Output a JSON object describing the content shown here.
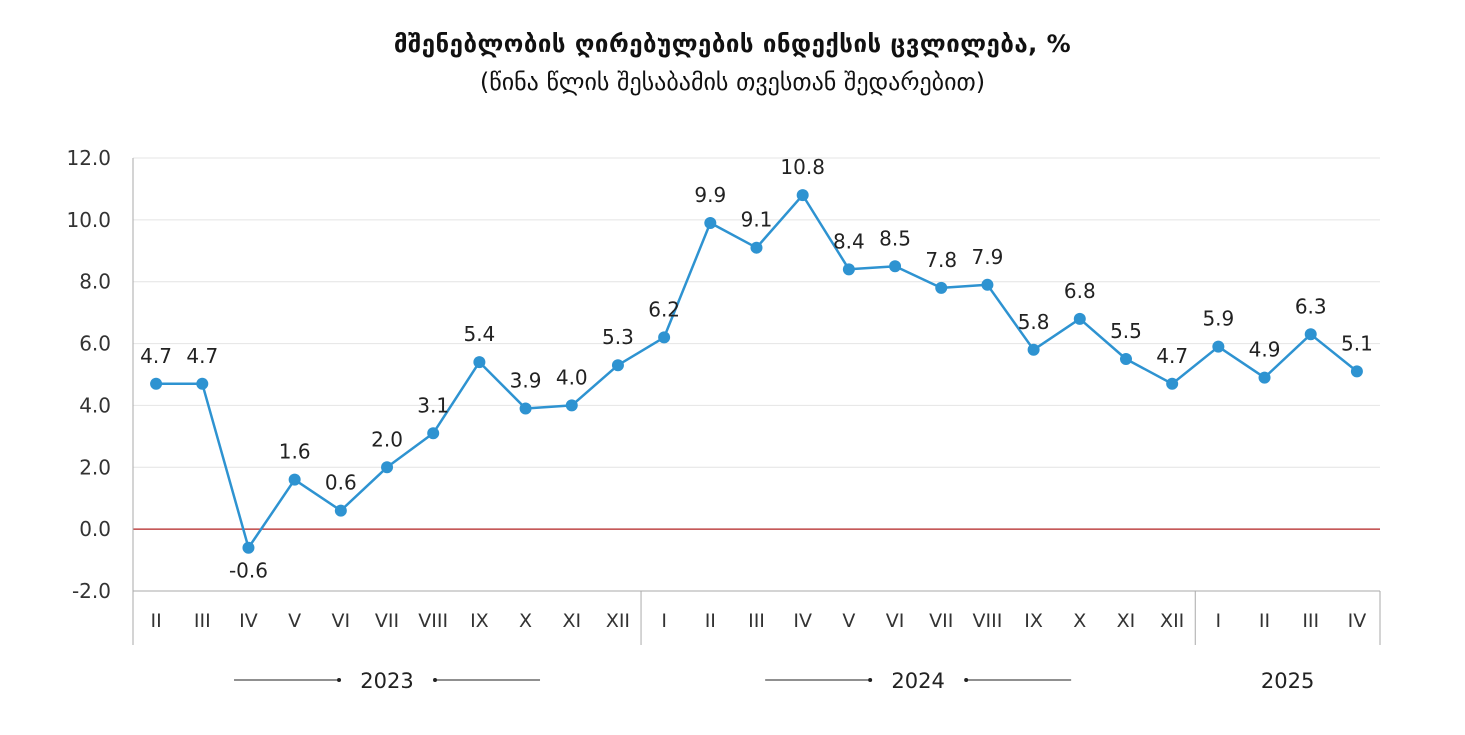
{
  "chart_data": {
    "type": "line",
    "title": "მშენებლობის ღირებულების ინდექსის ცვლილება, %",
    "subtitle": "(წინა წლის შესაბამის თვესთან შედარებით)",
    "xlabel": "",
    "ylabel": "",
    "ylim": [
      -2.0,
      12.0
    ],
    "yticks": [
      "12.0",
      "10.0",
      "8.0",
      "6.0",
      "4.0",
      "2.0",
      "0.0",
      "-2.0"
    ],
    "ytick_values": [
      12,
      10,
      8,
      6,
      4,
      2,
      0,
      -2
    ],
    "grid": true,
    "legend": "none",
    "categories": [
      "II",
      "III",
      "IV",
      "V",
      "VI",
      "VII",
      "VIII",
      "IX",
      "X",
      "XI",
      "XII",
      "I",
      "II",
      "III",
      "IV",
      "V",
      "VI",
      "VII",
      "VIII",
      "IX",
      "X",
      "XI",
      "XII",
      "I",
      "II",
      "III",
      "IV"
    ],
    "values": [
      4.7,
      4.7,
      -0.6,
      1.6,
      0.6,
      2.0,
      3.1,
      5.4,
      3.9,
      4.0,
      5.3,
      6.2,
      9.9,
      9.1,
      10.8,
      8.4,
      8.5,
      7.8,
      7.9,
      5.8,
      6.8,
      5.5,
      4.7,
      5.9,
      4.9,
      6.3,
      5.1
    ],
    "value_labels": [
      "4.7",
      "4.7",
      "-0.6",
      "1.6",
      "0.6",
      "2.0",
      "3.1",
      "5.4",
      "3.9",
      "4.0",
      "5.3",
      "6.2",
      "9.9",
      "9.1",
      "10.8",
      "8.4",
      "8.5",
      "7.8",
      "7.9",
      "5.8",
      "6.8",
      "5.5",
      "4.7",
      "5.9",
      "4.9",
      "6.3",
      "5.1"
    ],
    "years": [
      {
        "label": "2023",
        "start": 0,
        "end": 10
      },
      {
        "label": "2024",
        "start": 11,
        "end": 22
      },
      {
        "label": "2025",
        "start": 23,
        "end": 26
      }
    ],
    "colors": {
      "line": "#2E93D1",
      "zero_line": "#B22222",
      "grid": "#E4E4E4",
      "axis": "#AAAAAA"
    }
  }
}
